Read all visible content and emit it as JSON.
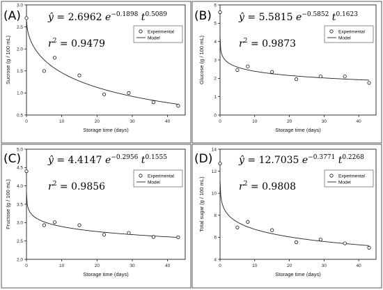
{
  "chart_data": [
    {
      "type": "scatter",
      "panel_label": "(A)",
      "ylabel": "Sucrose (g / 100 mL)",
      "xlabel": "Storage time (days)",
      "xlim": [
        0,
        45
      ],
      "ylim": [
        0.5,
        3.0
      ],
      "xticks": [
        "0",
        "10",
        "20",
        "30",
        "40"
      ],
      "yticks": [
        "0.5",
        "1.0",
        "1.5",
        "2.0",
        "2.5",
        "3.0"
      ],
      "equation": {
        "y": "ŷ",
        "coef": "2.6962",
        "exp": "−0.1898",
        "tpow": "0.5089"
      },
      "r2": "0.9479",
      "legend": {
        "experimental": "Experimental",
        "model": "Model"
      },
      "model": {
        "a": 2.6962,
        "b": 0.1898,
        "c": 0.5089
      },
      "series": [
        {
          "name": "Experimental",
          "x": [
            0,
            5,
            8,
            15,
            22,
            29,
            36,
            43
          ],
          "y": [
            2.7,
            1.5,
            1.8,
            1.4,
            0.97,
            1.0,
            0.79,
            0.71
          ]
        }
      ]
    },
    {
      "type": "scatter",
      "panel_label": "(B)",
      "ylabel": "Glucose (g / 100 mL)",
      "xlabel": "Storage time (days)",
      "xlim": [
        0,
        45
      ],
      "ylim": [
        0,
        6
      ],
      "xticks": [
        "0",
        "10",
        "20",
        "30",
        "40"
      ],
      "yticks": [
        "0",
        "1",
        "2",
        "3",
        "4",
        "5",
        "6"
      ],
      "equation": {
        "y": "ŷ",
        "coef": "5.5815",
        "exp": "−0.5852",
        "tpow": "0.1623"
      },
      "r2": "0.9873",
      "legend": {
        "experimental": "Experimental",
        "model": "Model"
      },
      "model": {
        "a": 5.5815,
        "b": 0.5852,
        "c": 0.1623
      },
      "series": [
        {
          "name": "Experimental",
          "x": [
            0,
            5,
            8,
            15,
            22,
            29,
            36,
            43
          ],
          "y": [
            5.6,
            2.45,
            2.65,
            2.35,
            1.95,
            2.1,
            2.1,
            1.75
          ]
        }
      ]
    },
    {
      "type": "scatter",
      "panel_label": "(C)",
      "ylabel": "Fructose (g / 100 mL)",
      "xlabel": "Storage time (days)",
      "xlim": [
        0,
        45
      ],
      "ylim": [
        2.0,
        5.0
      ],
      "xticks": [
        "0",
        "10",
        "20",
        "30",
        "40"
      ],
      "yticks": [
        "2.0",
        "2.5",
        "3.0",
        "3.5",
        "4.0",
        "4.5",
        "5.0"
      ],
      "equation": {
        "y": "ŷ",
        "coef": "4.4147",
        "exp": "−0.2956",
        "tpow": "0.1555"
      },
      "r2": "0.9856",
      "legend": {
        "experimental": "Experimental",
        "model": "Model"
      },
      "model": {
        "a": 4.4147,
        "b": 0.2956,
        "c": 0.1555
      },
      "series": [
        {
          "name": "Experimental",
          "x": [
            0,
            5,
            8,
            15,
            22,
            29,
            36,
            43
          ],
          "y": [
            4.4,
            2.93,
            3.01,
            2.93,
            2.67,
            2.72,
            2.61,
            2.6
          ]
        }
      ]
    },
    {
      "type": "scatter",
      "panel_label": "(D)",
      "ylabel": "Total sugar (g / 100 mL)",
      "xlabel": "Storage time (days)",
      "xlim": [
        0,
        45
      ],
      "ylim": [
        4,
        14
      ],
      "xticks": [
        "0",
        "10",
        "20",
        "30",
        "40"
      ],
      "yticks": [
        "4",
        "6",
        "8",
        "10",
        "12",
        "14"
      ],
      "equation": {
        "y": "ŷ",
        "coef": "12.7035",
        "exp": "−0.3771",
        "tpow": "0.2268"
      },
      "r2": "0.9808",
      "legend": {
        "experimental": "Experimental",
        "model": "Model"
      },
      "model": {
        "a": 12.7035,
        "b": 0.3771,
        "c": 0.2268
      },
      "series": [
        {
          "name": "Experimental",
          "x": [
            0,
            5,
            8,
            15,
            22,
            29,
            36,
            43
          ],
          "y": [
            12.7,
            6.9,
            7.4,
            6.65,
            5.55,
            5.8,
            5.45,
            5.05
          ]
        }
      ]
    }
  ]
}
